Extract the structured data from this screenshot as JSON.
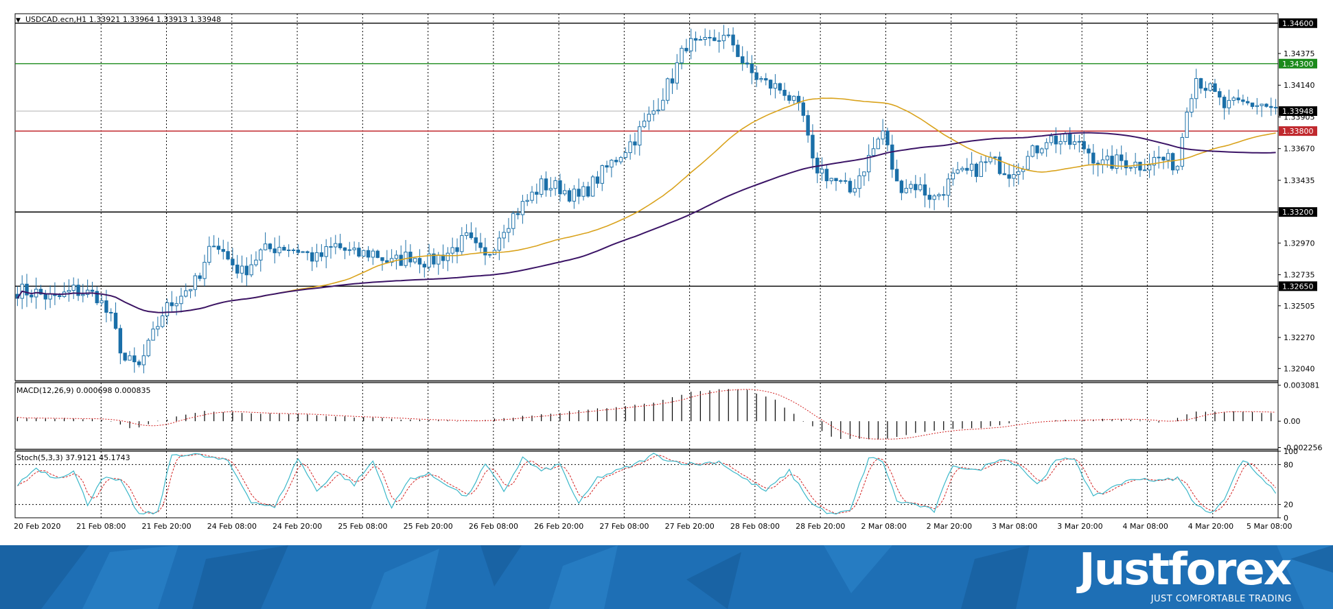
{
  "window": {
    "symbol_header": "USDCAD.ecn,H1  1.33921 1.33964 1.33913 1.33948",
    "menu_glyph": "▼"
  },
  "brand": {
    "logo": "Justforex",
    "tagline": "JUST COMFORTABLE TRADING"
  },
  "colors": {
    "candle": "#1a6fa8",
    "ma_fast": "#d9a21b",
    "ma_slow": "#3b1466",
    "level_black": "#000000",
    "level_green": "#1a8a1a",
    "level_red": "#c0282d",
    "macd_signal": "#d22020",
    "stoch_main": "#3ab7c9",
    "stoch_signal": "#d22020",
    "banner": "#1e6fb5"
  },
  "chart_data": [
    {
      "type": "candlestick",
      "title": "USDCAD.ecn,H1  1.33921 1.33964 1.33913 1.33948",
      "ylim": [
        1.3195,
        1.3467
      ],
      "price_ticks": [
        "1.34375",
        "1.34140",
        "1.33905",
        "1.33670",
        "1.33435",
        "1.32970",
        "1.32735",
        "1.32505",
        "1.32270",
        "1.32040"
      ],
      "x_tick_labels": [
        "20 Feb 2020",
        "21 Feb 08:00",
        "21 Feb 20:00",
        "24 Feb 08:00",
        "24 Feb 20:00",
        "25 Feb 08:00",
        "25 Feb 20:00",
        "26 Feb 08:00",
        "26 Feb 20:00",
        "27 Feb 08:00",
        "27 Feb 20:00",
        "28 Feb 08:00",
        "28 Feb 20:00",
        "2 Mar 08:00",
        "2 Mar 20:00",
        "3 Mar 08:00",
        "3 Mar 20:00",
        "4 Mar 08:00",
        "4 Mar 20:00",
        "5 Mar 08:00"
      ],
      "close_anchors": [
        [
          0,
          1.3262
        ],
        [
          4,
          1.326
        ],
        [
          8,
          1.3255
        ],
        [
          12,
          1.3262
        ],
        [
          17,
          1.3258
        ],
        [
          20,
          1.324
        ],
        [
          23,
          1.321
        ],
        [
          26,
          1.3205
        ],
        [
          28,
          1.322
        ],
        [
          31,
          1.3245
        ],
        [
          35,
          1.326
        ],
        [
          39,
          1.327
        ],
        [
          42,
          1.33
        ],
        [
          45,
          1.3285
        ],
        [
          48,
          1.3275
        ],
        [
          52,
          1.329
        ],
        [
          56,
          1.3295
        ],
        [
          60,
          1.3292
        ],
        [
          64,
          1.3285
        ],
        [
          68,
          1.3295
        ],
        [
          72,
          1.3288
        ],
        [
          76,
          1.329
        ],
        [
          80,
          1.3282
        ],
        [
          84,
          1.3288
        ],
        [
          88,
          1.3283
        ],
        [
          92,
          1.329
        ],
        [
          96,
          1.33
        ],
        [
          100,
          1.3285
        ],
        [
          104,
          1.331
        ],
        [
          108,
          1.3325
        ],
        [
          112,
          1.334
        ],
        [
          116,
          1.3338
        ],
        [
          120,
          1.333
        ],
        [
          124,
          1.3345
        ],
        [
          128,
          1.336
        ],
        [
          132,
          1.3375
        ],
        [
          136,
          1.3395
        ],
        [
          140,
          1.342
        ],
        [
          143,
          1.3445
        ],
        [
          146,
          1.3442
        ],
        [
          150,
          1.345
        ],
        [
          153,
          1.3445
        ],
        [
          156,
          1.3425
        ],
        [
          160,
          1.3415
        ],
        [
          164,
          1.341
        ],
        [
          168,
          1.339
        ],
        [
          170,
          1.3355
        ],
        [
          174,
          1.3345
        ],
        [
          178,
          1.3335
        ],
        [
          182,
          1.336
        ],
        [
          185,
          1.338
        ],
        [
          188,
          1.334
        ],
        [
          192,
          1.334
        ],
        [
          196,
          1.333
        ],
        [
          200,
          1.3345
        ],
        [
          204,
          1.335
        ],
        [
          208,
          1.3358
        ],
        [
          212,
          1.335
        ],
        [
          216,
          1.336
        ],
        [
          220,
          1.3375
        ],
        [
          224,
          1.3372
        ],
        [
          228,
          1.3368
        ],
        [
          232,
          1.3355
        ],
        [
          236,
          1.3358
        ],
        [
          240,
          1.3355
        ],
        [
          244,
          1.336
        ],
        [
          248,
          1.3355
        ],
        [
          250,
          1.34
        ],
        [
          252,
          1.342
        ],
        [
          255,
          1.341
        ],
        [
          258,
          1.3398
        ],
        [
          262,
          1.34
        ],
        [
          266,
          1.34
        ],
        [
          269,
          1.3395
        ]
      ],
      "levels": [
        {
          "label": "1.34600",
          "value": 1.346,
          "color": "black"
        },
        {
          "label": "1.34300",
          "value": 1.343,
          "color": "green"
        },
        {
          "label": "1.33948",
          "value": 1.33948,
          "color": "current"
        },
        {
          "label": "1.33800",
          "value": 1.338,
          "color": "red"
        },
        {
          "label": "1.33200",
          "value": 1.332,
          "color": "black"
        },
        {
          "label": "1.32650",
          "value": 1.3265,
          "color": "black"
        }
      ],
      "series": [
        {
          "name": "",
          "kind": "ma_fast",
          "period": 50
        },
        {
          "name": "",
          "kind": "ma_slow",
          "period": 100
        }
      ],
      "grid": true
    },
    {
      "type": "histogram",
      "title": "MACD(12,26,9) 0.000698 0.000835",
      "ylim": [
        -0.0024,
        0.0033
      ],
      "y_ticks": [
        "0.003081",
        "0.00",
        "-0.002256"
      ],
      "anchors": [
        [
          0,
          0.0003
        ],
        [
          15,
          0.0002
        ],
        [
          20,
          0.0
        ],
        [
          25,
          -0.0007
        ],
        [
          30,
          0.0
        ],
        [
          40,
          0.0009
        ],
        [
          50,
          0.0007
        ],
        [
          65,
          0.0005
        ],
        [
          80,
          0.0002
        ],
        [
          95,
          0.0
        ],
        [
          105,
          0.0003
        ],
        [
          120,
          0.0009
        ],
        [
          135,
          0.0015
        ],
        [
          145,
          0.0026
        ],
        [
          155,
          0.0028
        ],
        [
          162,
          0.0018
        ],
        [
          168,
          0.0
        ],
        [
          175,
          -0.0015
        ],
        [
          185,
          -0.0016
        ],
        [
          195,
          -0.0008
        ],
        [
          205,
          -0.0006
        ],
        [
          215,
          0.0
        ],
        [
          225,
          0.0001
        ],
        [
          235,
          0.0002
        ],
        [
          245,
          -0.0001
        ],
        [
          252,
          0.0008
        ],
        [
          262,
          0.0008
        ],
        [
          269,
          0.0007
        ]
      ]
    },
    {
      "type": "line",
      "title": "Stoch(5,3,3) 37.9121 45.1743",
      "ylim": [
        0,
        100
      ],
      "y_ticks": [
        "100",
        "80",
        "20",
        "0"
      ],
      "levels": [
        80,
        20
      ],
      "anchors": [
        [
          0,
          50
        ],
        [
          4,
          75
        ],
        [
          8,
          60
        ],
        [
          12,
          70
        ],
        [
          15,
          20
        ],
        [
          18,
          60
        ],
        [
          22,
          55
        ],
        [
          26,
          5
        ],
        [
          30,
          8
        ],
        [
          33,
          95
        ],
        [
          38,
          95
        ],
        [
          45,
          85
        ],
        [
          50,
          25
        ],
        [
          55,
          15
        ],
        [
          60,
          90
        ],
        [
          64,
          40
        ],
        [
          68,
          70
        ],
        [
          72,
          50
        ],
        [
          76,
          85
        ],
        [
          80,
          15
        ],
        [
          84,
          60
        ],
        [
          88,
          65
        ],
        [
          92,
          50
        ],
        [
          96,
          30
        ],
        [
          100,
          80
        ],
        [
          104,
          40
        ],
        [
          108,
          90
        ],
        [
          112,
          70
        ],
        [
          116,
          80
        ],
        [
          120,
          20
        ],
        [
          124,
          60
        ],
        [
          128,
          70
        ],
        [
          132,
          80
        ],
        [
          136,
          95
        ],
        [
          140,
          85
        ],
        [
          145,
          80
        ],
        [
          150,
          85
        ],
        [
          155,
          60
        ],
        [
          160,
          40
        ],
        [
          165,
          70
        ],
        [
          170,
          20
        ],
        [
          174,
          5
        ],
        [
          178,
          10
        ],
        [
          182,
          90
        ],
        [
          185,
          85
        ],
        [
          188,
          25
        ],
        [
          192,
          20
        ],
        [
          196,
          10
        ],
        [
          200,
          80
        ],
        [
          205,
          70
        ],
        [
          210,
          90
        ],
        [
          214,
          80
        ],
        [
          218,
          50
        ],
        [
          222,
          85
        ],
        [
          226,
          90
        ],
        [
          230,
          30
        ],
        [
          235,
          50
        ],
        [
          240,
          60
        ],
        [
          244,
          55
        ],
        [
          248,
          60
        ],
        [
          252,
          20
        ],
        [
          255,
          5
        ],
        [
          258,
          30
        ],
        [
          262,
          88
        ],
        [
          266,
          60
        ],
        [
          269,
          38
        ]
      ]
    }
  ]
}
